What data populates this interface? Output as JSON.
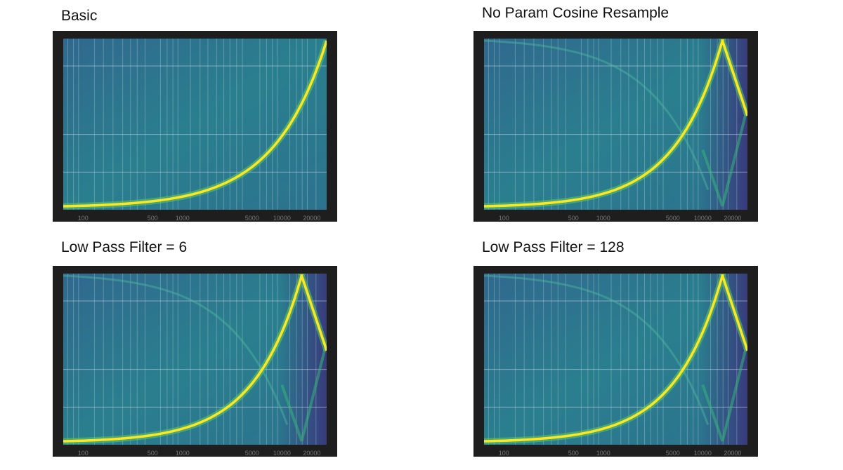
{
  "panels": [
    {
      "title": "Basic",
      "x_ticks": [
        "100",
        "500",
        "1000",
        "5000",
        "10000",
        "20000"
      ]
    },
    {
      "title": "No Param Cosine Resample",
      "x_ticks": [
        "100",
        "500",
        "1000",
        "5000",
        "10000",
        "20000"
      ]
    },
    {
      "title": "Low Pass Filter = 6",
      "x_ticks": [
        "100",
        "500",
        "1000",
        "5000",
        "10000",
        "20000"
      ]
    },
    {
      "title": "Low Pass Filter = 128",
      "x_ticks": [
        "100",
        "500",
        "1000",
        "5000",
        "10000",
        "20000"
      ]
    }
  ]
}
